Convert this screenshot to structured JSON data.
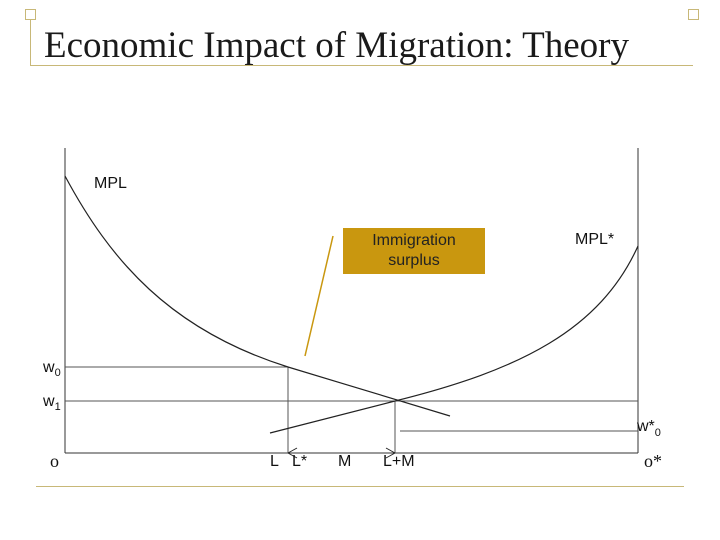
{
  "slide": {
    "title": "Economic Impact of Migration: Theory"
  },
  "diagram": {
    "curves": {
      "mpl": "MPL",
      "mpl_star": "MPL*"
    },
    "callout": {
      "line1": "Immigration",
      "line2": "surplus",
      "color": "#c9970f"
    },
    "wages": {
      "w0_base": "w",
      "w0_sub": "0",
      "w1_base": "w",
      "w1_sub": "1",
      "wstar0_base": "w*",
      "wstar0_sub": "0"
    },
    "axis": {
      "origin_left": "o",
      "origin_right": "o*",
      "l": "L",
      "l_star": "L*",
      "m": "M",
      "l_plus_m": "L+M"
    }
  }
}
